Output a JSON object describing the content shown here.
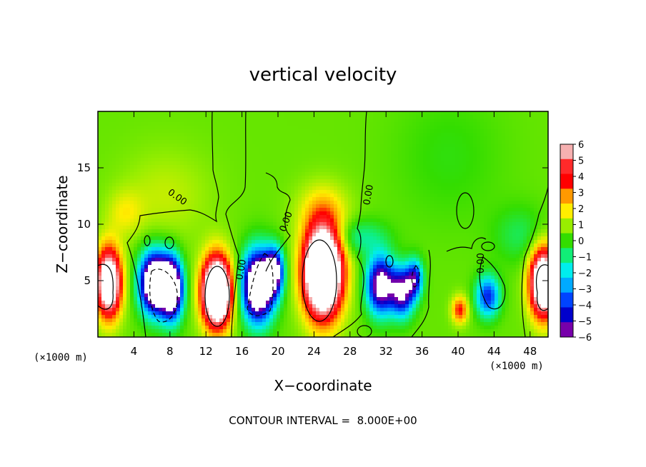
{
  "chart_data": {
    "type": "heatmap",
    "title": "vertical velocity",
    "xlabel": "X−coordinate",
    "ylabel": "Z−coordinate",
    "x_unit_left": "(×1000 m)",
    "x_unit_right": "(×1000 m)",
    "xlim": [
      0,
      50
    ],
    "ylim": [
      0,
      20
    ],
    "x_ticks": [
      4,
      8,
      12,
      16,
      20,
      24,
      28,
      32,
      36,
      40,
      44,
      48
    ],
    "y_ticks": [
      5,
      10,
      15
    ],
    "colorbar": {
      "ticks": [
        6,
        5,
        4,
        3,
        2,
        1,
        0,
        -1,
        -2,
        -3,
        -4,
        -5,
        -6
      ],
      "tick_labels": [
        "6",
        "5",
        "4",
        "3",
        "2",
        "1",
        "0",
        "−1",
        "−2",
        "−3",
        "−4",
        "−5",
        "−6"
      ],
      "range": [
        -6,
        6
      ],
      "colors": [
        "#f6b0b0",
        "#ff2a2a",
        "#ff0000",
        "#ff9900",
        "#ffee00",
        "#99ee00",
        "#33dd00",
        "#11ee77",
        "#00eeee",
        "#00aaff",
        "#0044ff",
        "#0000cc",
        "#7700aa"
      ]
    },
    "contour_label": "0.00",
    "background_value": 0.5,
    "cells": [
      {
        "x": 1.2,
        "z": 4.8,
        "w": 1.4,
        "h": 3.0,
        "amp": 9
      },
      {
        "x": 6.3,
        "z": 4.8,
        "w": 1.6,
        "h": 2.6,
        "amp": -11
      },
      {
        "x": 8.2,
        "z": 4.3,
        "w": 1.2,
        "h": 2.6,
        "amp": -10
      },
      {
        "x": 13.2,
        "z": 4.0,
        "w": 1.6,
        "h": 3.0,
        "amp": 12
      },
      {
        "x": 17.8,
        "z": 4.5,
        "w": 1.7,
        "h": 3.0,
        "amp": -11
      },
      {
        "x": 19.6,
        "z": 5.8,
        "w": 1.0,
        "h": 2.0,
        "amp": -7
      },
      {
        "x": 25.0,
        "z": 5.8,
        "w": 2.1,
        "h": 3.9,
        "amp": 13
      },
      {
        "x": 31.4,
        "z": 4.6,
        "w": 1.5,
        "h": 2.5,
        "amp": -8
      },
      {
        "x": 33.8,
        "z": 4.0,
        "w": 1.3,
        "h": 2.1,
        "amp": -7
      },
      {
        "x": 35.2,
        "z": 5.2,
        "w": 0.9,
        "h": 1.6,
        "amp": -5
      },
      {
        "x": 40.2,
        "z": 2.4,
        "w": 0.9,
        "h": 1.2,
        "amp": 3.5
      },
      {
        "x": 43.3,
        "z": 3.6,
        "w": 1.3,
        "h": 1.8,
        "amp": -5
      },
      {
        "x": 49.5,
        "z": 4.8,
        "w": 1.5,
        "h": 3.0,
        "amp": 10
      },
      {
        "x": 7.5,
        "z": 12.5,
        "w": 5.0,
        "h": 4.0,
        "amp": 0.9
      },
      {
        "x": 25.0,
        "z": 11.3,
        "w": 3.0,
        "h": 2.5,
        "amp": 1.4
      },
      {
        "x": 3.0,
        "z": 11.0,
        "w": 2.0,
        "h": 2.0,
        "amp": 1.2
      },
      {
        "x": 29.0,
        "z": 8.8,
        "w": 3.0,
        "h": 1.6,
        "amp": -1.8
      },
      {
        "x": 39.0,
        "z": 16.0,
        "w": 6.0,
        "h": 6.0,
        "amp": -0.6
      },
      {
        "x": 47.0,
        "z": 9.0,
        "w": 3.0,
        "h": 2.5,
        "amp": -1.2
      }
    ],
    "contour_text": "CONTOUR INTERVAL =  8.000E+00"
  }
}
